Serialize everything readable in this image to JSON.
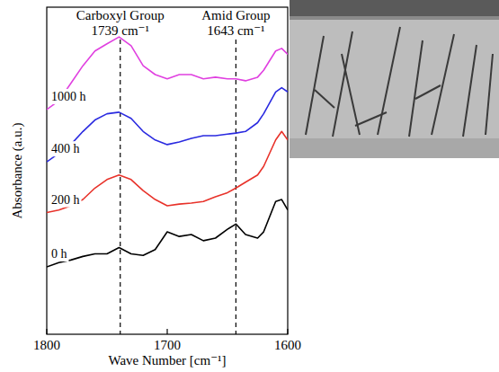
{
  "chart_data": {
    "type": "line",
    "x_label": "Wave Number [cm⁻¹]",
    "y_label": "Absorbance (a.u.)",
    "x": [
      1800,
      1790,
      1780,
      1770,
      1760,
      1750,
      1740,
      1730,
      1720,
      1710,
      1700,
      1690,
      1680,
      1670,
      1660,
      1650,
      1643,
      1635,
      1625,
      1620,
      1610,
      1605,
      1600
    ],
    "series": [
      {
        "name": "0 h",
        "color": "#000000",
        "values": [
          2.06,
          2.19,
          2.27,
          2.38,
          2.46,
          2.46,
          2.65,
          2.46,
          2.41,
          2.59,
          3.13,
          2.99,
          3.05,
          2.86,
          2.94,
          3.21,
          3.37,
          3.05,
          2.94,
          3.13,
          4.06,
          4.12,
          3.8
        ]
      },
      {
        "name": "200 h",
        "color": "#e8322a",
        "values": [
          3.72,
          3.8,
          3.93,
          4.12,
          4.47,
          4.73,
          4.87,
          4.73,
          4.39,
          4.12,
          3.93,
          3.98,
          4.01,
          4.06,
          4.2,
          4.33,
          4.47,
          4.65,
          4.87,
          5.13,
          5.94,
          6.2,
          5.94
        ]
      },
      {
        "name": "400 h",
        "color": "#2a2ae0",
        "values": [
          5.27,
          5.53,
          5.8,
          6.2,
          6.55,
          6.74,
          6.79,
          6.6,
          6.2,
          5.94,
          5.8,
          5.88,
          5.99,
          6.07,
          6.07,
          6.12,
          6.15,
          6.2,
          6.47,
          6.74,
          7.41,
          7.54,
          7.41
        ]
      },
      {
        "name": "1000 h",
        "color": "#e040e0",
        "values": [
          6.87,
          7.14,
          7.67,
          8.21,
          8.66,
          8.88,
          9.09,
          8.82,
          8.21,
          7.94,
          7.81,
          7.94,
          7.94,
          7.81,
          7.86,
          7.81,
          7.81,
          7.75,
          7.86,
          8.07,
          8.66,
          8.74,
          8.56
        ]
      }
    ],
    "xlim": [
      1800,
      1600
    ],
    "xticks": [
      1800,
      1700,
      1600
    ],
    "ylim": [
      0,
      10
    ],
    "tick_labels": "x",
    "grid": false,
    "annotations": [
      {
        "text": "Carboxyl Group",
        "label": "1739 cm⁻¹",
        "x": 1739
      },
      {
        "text": "Amid Group",
        "label": "1643 cm⁻¹",
        "x": 1643
      }
    ]
  }
}
